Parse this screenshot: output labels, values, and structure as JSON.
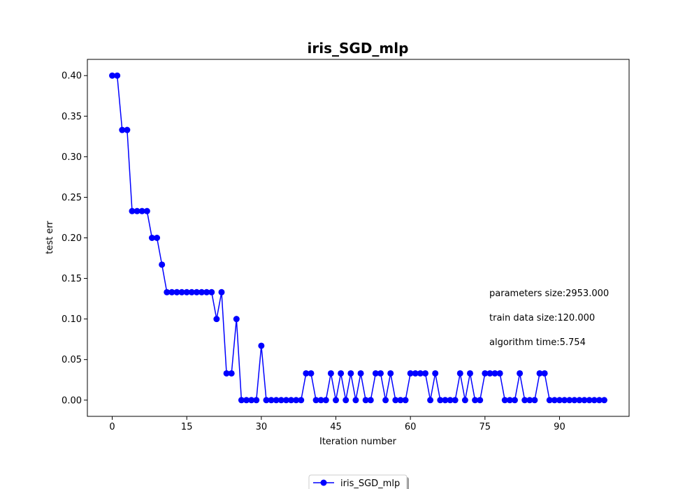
{
  "chart_data": {
    "type": "line",
    "title": "iris_SGD_mlp",
    "xlabel": "Iteration number",
    "ylabel": "test err",
    "xlim": [
      -5,
      104
    ],
    "ylim": [
      -0.02,
      0.42
    ],
    "xticks": [
      0,
      15,
      30,
      45,
      60,
      75,
      90
    ],
    "xtick_labels": [
      "0",
      "15",
      "30",
      "45",
      "60",
      "75",
      "90"
    ],
    "yticks": [
      0.0,
      0.05,
      0.1,
      0.15,
      0.2,
      0.25,
      0.3,
      0.35,
      0.4
    ],
    "ytick_labels": [
      "0.00",
      "0.05",
      "0.10",
      "0.15",
      "0.20",
      "0.25",
      "0.30",
      "0.35",
      "0.40"
    ],
    "grid": false,
    "legend_position": "bottom-center",
    "series": [
      {
        "name": "iris_SGD_mlp",
        "color": "#0000ff",
        "marker": "circle",
        "x": [
          0,
          1,
          2,
          3,
          4,
          5,
          6,
          7,
          8,
          9,
          10,
          11,
          12,
          13,
          14,
          15,
          16,
          17,
          18,
          19,
          20,
          21,
          22,
          23,
          24,
          25,
          26,
          27,
          28,
          29,
          30,
          31,
          32,
          33,
          34,
          35,
          36,
          37,
          38,
          39,
          40,
          41,
          42,
          43,
          44,
          45,
          46,
          47,
          48,
          49,
          50,
          51,
          52,
          53,
          54,
          55,
          56,
          57,
          58,
          59,
          60,
          61,
          62,
          63,
          64,
          65,
          66,
          67,
          68,
          69,
          70,
          71,
          72,
          73,
          74,
          75,
          76,
          77,
          78,
          79,
          80,
          81,
          82,
          83,
          84,
          85,
          86,
          87,
          88,
          89,
          90,
          91,
          92,
          93,
          94,
          95,
          96,
          97,
          98,
          99
        ],
        "y": [
          0.4,
          0.4,
          0.333,
          0.333,
          0.233,
          0.233,
          0.233,
          0.233,
          0.2,
          0.2,
          0.167,
          0.133,
          0.133,
          0.133,
          0.133,
          0.133,
          0.133,
          0.133,
          0.133,
          0.133,
          0.133,
          0.1,
          0.133,
          0.033,
          0.033,
          0.1,
          0,
          0,
          0,
          0,
          0.067,
          0,
          0,
          0,
          0,
          0,
          0,
          0,
          0,
          0.033,
          0.033,
          0,
          0,
          0,
          0.033,
          0,
          0.033,
          0,
          0.033,
          0,
          0.033,
          0,
          0,
          0.033,
          0.033,
          0,
          0.033,
          0,
          0,
          0,
          0.033,
          0.033,
          0.033,
          0.033,
          0,
          0.033,
          0,
          0,
          0,
          0,
          0.033,
          0,
          0.033,
          0,
          0,
          0.033,
          0.033,
          0.033,
          0.033,
          0,
          0,
          0,
          0.033,
          0,
          0,
          0,
          0.033,
          0.033,
          0,
          0,
          0,
          0,
          0,
          0,
          0,
          0,
          0,
          0,
          0,
          0
        ]
      }
    ],
    "annotations": [
      "parameters size:2953.000",
      "train data size:120.000",
      "algorithm time:5.754"
    ]
  }
}
